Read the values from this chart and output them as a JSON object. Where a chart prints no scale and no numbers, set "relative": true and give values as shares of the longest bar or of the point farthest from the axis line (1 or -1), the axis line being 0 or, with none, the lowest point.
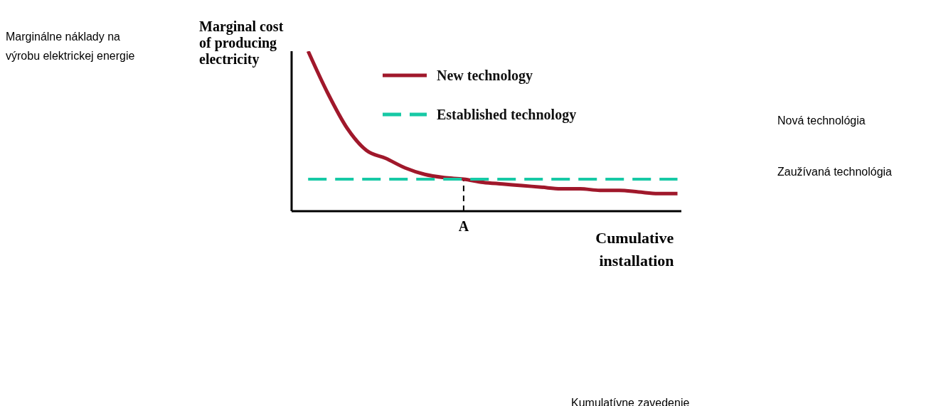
{
  "chart_data": {
    "type": "line",
    "relative": true,
    "ylabel": "Marginal cost of producing electricity",
    "xlabel": "Cumulative installation",
    "categories": [
      null,
      null,
      null,
      null,
      null,
      null,
      null,
      null,
      null,
      null,
      null,
      null,
      null,
      null,
      null,
      null,
      null,
      null,
      null,
      null
    ],
    "series": [
      {
        "name": "New technology",
        "color": "#a0182b",
        "line_style": "solid",
        "values": [
          1.0,
          0.74,
          0.52,
          0.38,
          0.33,
          0.27,
          0.23,
          0.21,
          0.2,
          0.18,
          0.17,
          0.16,
          0.15,
          0.14,
          0.14,
          0.13,
          0.13,
          0.12,
          0.11,
          0.11
        ]
      },
      {
        "name": "Established technology",
        "color": "#17c9a5",
        "line_style": "dashed",
        "values": [
          0.2,
          0.2,
          0.2,
          0.2,
          0.2,
          0.2,
          0.2,
          0.2,
          0.2,
          0.2,
          0.2,
          0.2,
          0.2,
          0.2,
          0.2,
          0.2,
          0.2,
          0.2,
          0.2,
          0.2
        ]
      }
    ],
    "legend": "top",
    "grid": false,
    "marker": "none",
    "annotations": [
      "Marginálne náklady na výrobu elektrickej energie",
      "Nová technológia",
      "Zaužívaná technológia",
      "Kumulatívne zavedenie",
      "A"
    ]
  }
}
